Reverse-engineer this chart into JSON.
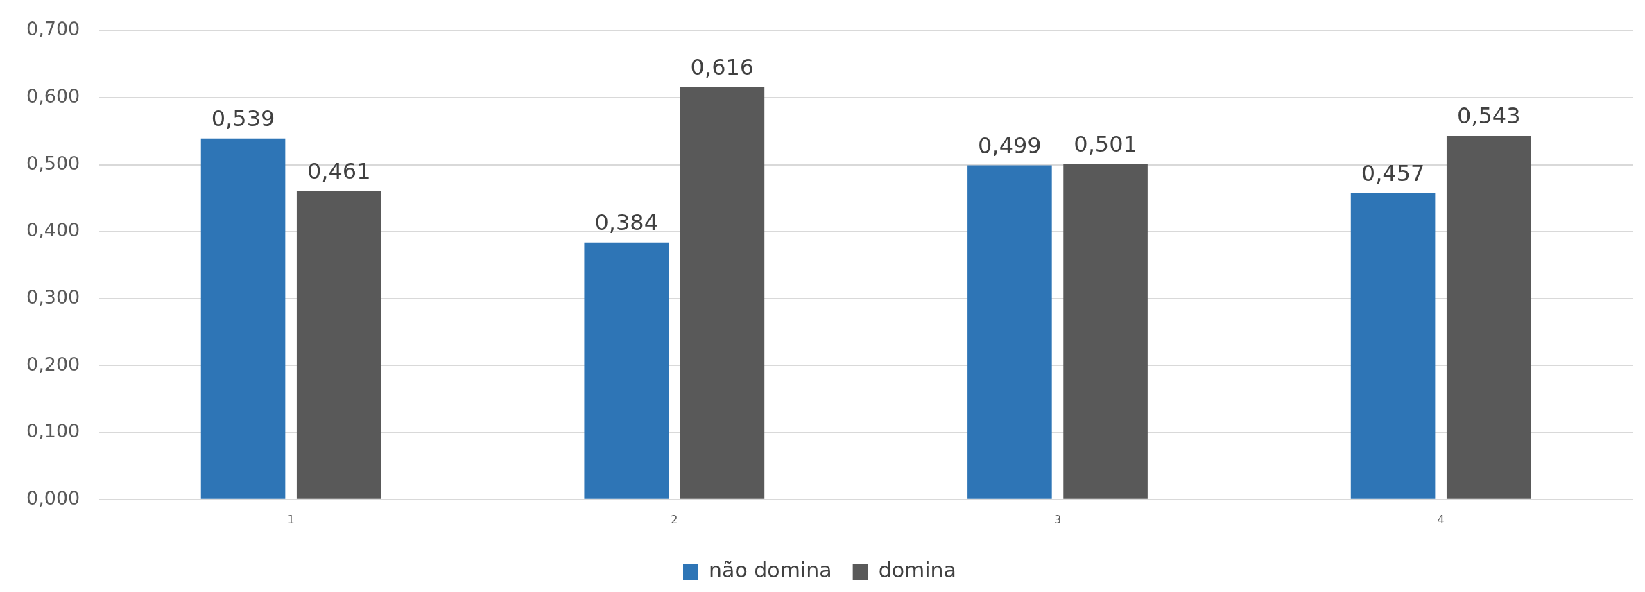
{
  "chart_data": {
    "type": "bar",
    "categories": [
      "1",
      "2",
      "3",
      "4"
    ],
    "series": [
      {
        "name": "não domina",
        "color": "#2e75b6",
        "values": [
          0.539,
          0.384,
          0.499,
          0.457
        ],
        "value_labels": [
          "0,539",
          "0,384",
          "0,499",
          "0,457"
        ]
      },
      {
        "name": "domina",
        "color": "#595959",
        "values": [
          0.461,
          0.616,
          0.501,
          0.543
        ],
        "value_labels": [
          "0,461",
          "0,616",
          "0,501",
          "0,543"
        ]
      }
    ],
    "ylim": [
      0,
      0.7
    ],
    "yticks": [
      {
        "value": 0,
        "label": "0,000"
      },
      {
        "value": 0.1,
        "label": "0,100"
      },
      {
        "value": 0.2,
        "label": "0,200"
      },
      {
        "value": 0.3,
        "label": "0,300"
      },
      {
        "value": 0.4,
        "label": "0,400"
      },
      {
        "value": 0.5,
        "label": "0,500"
      },
      {
        "value": 0.6,
        "label": "0,600"
      },
      {
        "value": 0.7,
        "label": "0,700"
      }
    ],
    "grid": "y",
    "legend": "bottom"
  }
}
